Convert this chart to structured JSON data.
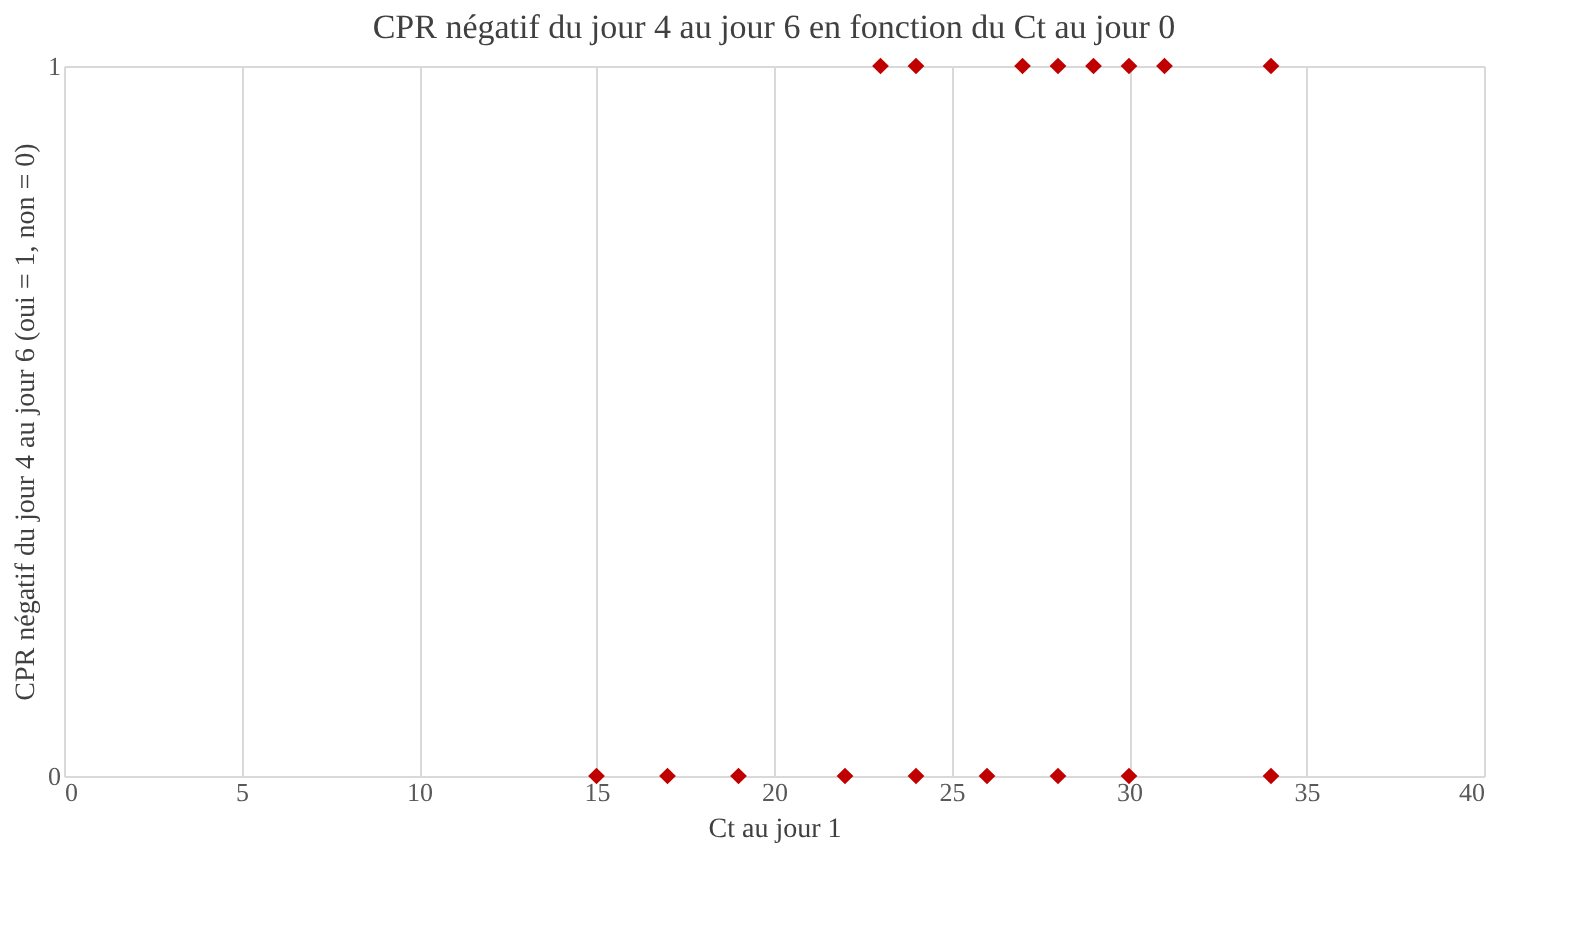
{
  "chart_data": {
    "type": "scatter",
    "title": "CPR négatif  du jour 4 au jour 6 en fonction du Ct au jour 0",
    "xlabel": "Ct au jour 1",
    "ylabel": "CPR négatif du jour 4 au jour 6 (oui = 1, non = 0)",
    "series": [
      {
        "color": "#c00000",
        "x": [
          23,
          24,
          27,
          28,
          29,
          30,
          31,
          34,
          15,
          17,
          19,
          22,
          24,
          26,
          28,
          30,
          34
        ],
        "values": [
          1,
          1,
          1,
          1,
          1,
          1,
          1,
          1,
          0,
          0,
          0,
          0,
          0,
          0,
          0,
          0,
          0
        ]
      }
    ],
    "xlim": [
      0,
      40
    ],
    "xticks": [
      0,
      5,
      10,
      15,
      20,
      25,
      30,
      35,
      40
    ],
    "ylim": [
      0,
      1
    ],
    "yticks": [
      0,
      1
    ],
    "grid": true,
    "marker": "diamond"
  }
}
